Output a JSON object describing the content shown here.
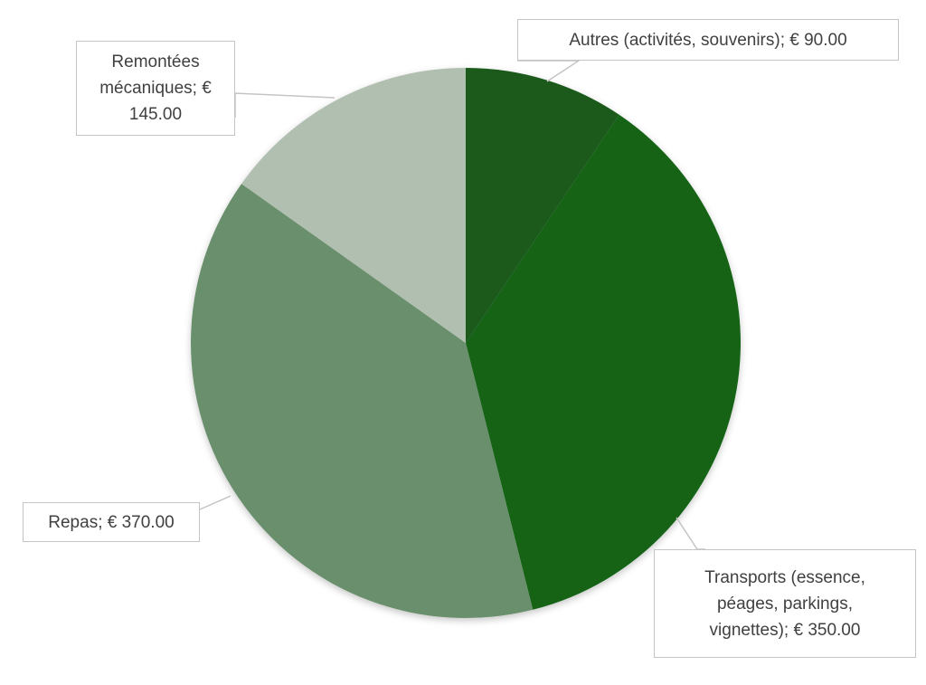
{
  "chart_data": {
    "type": "pie",
    "title": "",
    "currency": "€",
    "start_angle_deg": 0,
    "direction": "clockwise",
    "slices": [
      {
        "label": "Autres (activités, souvenirs)",
        "value": 90.0,
        "color": "#1a5a1f",
        "data_label": "Autres (activités, souvenirs); € 90.00"
      },
      {
        "label": "Transports (essence, péages, parkings, vignettes)",
        "value": 350.0,
        "color": "#126318",
        "data_label": "Transports (essence,\npéages, parkings,\nvignettes); € 350.00"
      },
      {
        "label": "Repas",
        "value": 370.0,
        "color": "#6a8f6c",
        "data_label": "Repas; € 370.00"
      },
      {
        "label": "Remontées mécaniques",
        "value": 145.0,
        "color": "#b1bfb0",
        "data_label": "Remontées\nmécaniques; €\n145.00"
      }
    ],
    "legend": "none",
    "data_labels": "callouts"
  }
}
